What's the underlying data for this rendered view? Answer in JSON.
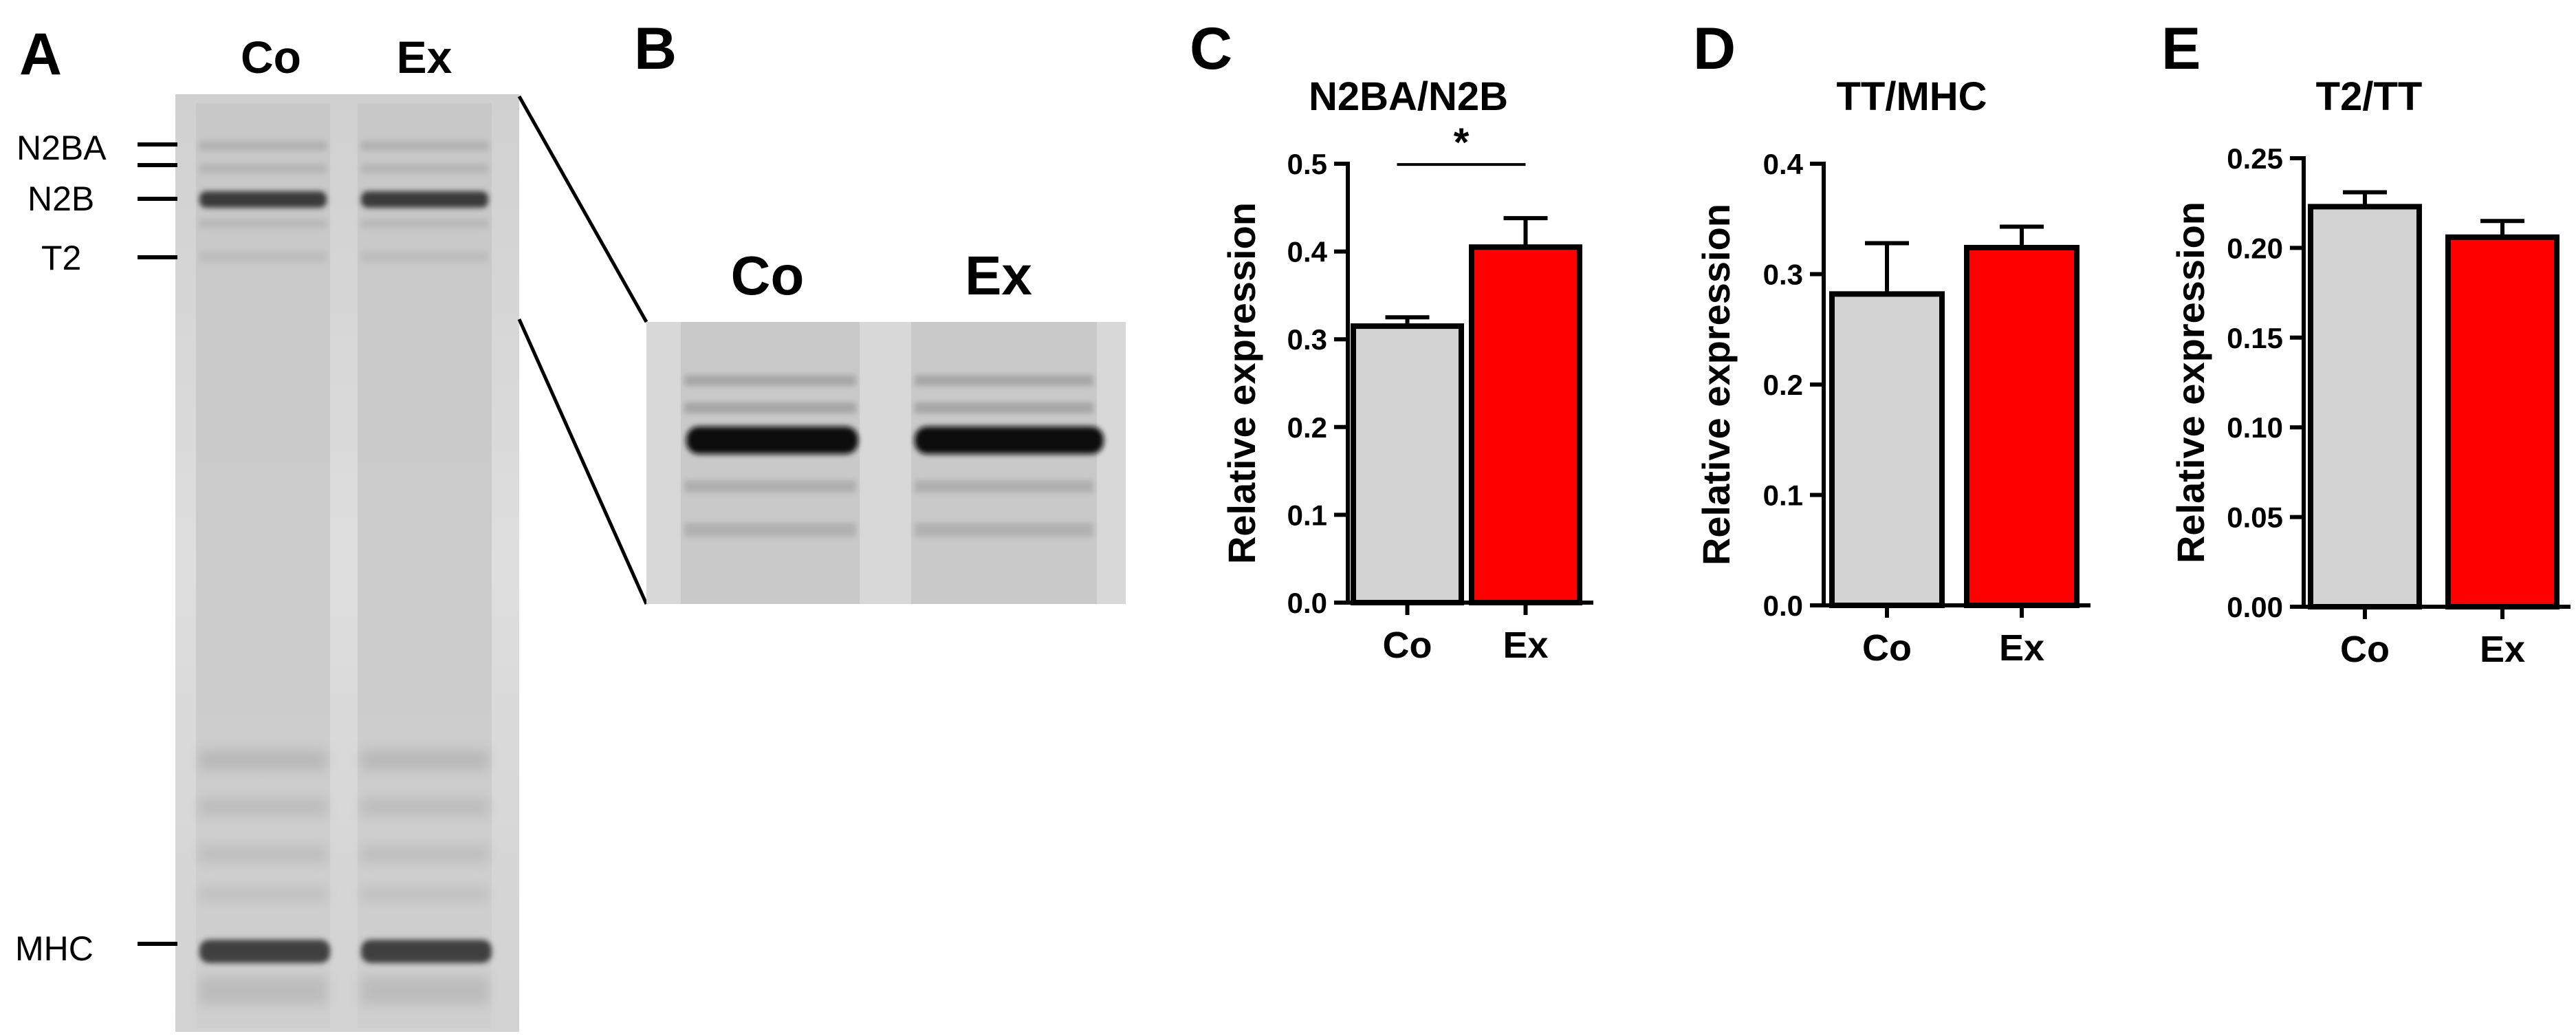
{
  "panels": {
    "A": "A",
    "B": "B",
    "C": "C",
    "D": "D",
    "E": "E"
  },
  "gel": {
    "lanes": [
      "Co",
      "Ex"
    ],
    "band_labels": [
      "N2BA",
      "N2B",
      "T2",
      "MHC"
    ]
  },
  "inset": {
    "lanes": [
      "Co",
      "Ex"
    ]
  },
  "colors": {
    "control_bar": "#d3d3d3",
    "exercise_bar": "#ff0000",
    "axis": "#000000"
  },
  "chart_data": [
    {
      "type": "bar",
      "title": "N2BA/N2B",
      "ylabel": "Relative expression",
      "xlabel": "",
      "categories": [
        "Co",
        "Ex"
      ],
      "values": [
        0.315,
        0.405
      ],
      "errors": [
        0.01,
        0.033
      ],
      "ylim": [
        0,
        0.5
      ],
      "yticks": [
        0.0,
        0.1,
        0.2,
        0.3,
        0.4,
        0.5
      ],
      "ytick_labels": [
        "0.0",
        "0.1",
        "0.2",
        "0.3",
        "0.4",
        "0.5"
      ],
      "significance": {
        "between": [
          "Co",
          "Ex"
        ],
        "label": "*"
      },
      "bar_colors": [
        "#d3d3d3",
        "#ff0000"
      ]
    },
    {
      "type": "bar",
      "title": "TT/MHC",
      "ylabel": "Relative expression",
      "xlabel": "",
      "categories": [
        "Co",
        "Ex"
      ],
      "values": [
        0.282,
        0.324
      ],
      "errors": [
        0.046,
        0.019
      ],
      "ylim": [
        0,
        0.4
      ],
      "yticks": [
        0.0,
        0.1,
        0.2,
        0.3,
        0.4
      ],
      "ytick_labels": [
        "0.0",
        "0.1",
        "0.2",
        "0.3",
        "0.4"
      ],
      "bar_colors": [
        "#d3d3d3",
        "#ff0000"
      ]
    },
    {
      "type": "bar",
      "title": "T2/TT",
      "ylabel": "Relative expression",
      "xlabel": "",
      "categories": [
        "Co",
        "Ex"
      ],
      "values": [
        0.223,
        0.206
      ],
      "errors": [
        0.008,
        0.009
      ],
      "ylim": [
        0,
        0.25
      ],
      "yticks": [
        0.0,
        0.05,
        0.1,
        0.15,
        0.2,
        0.25
      ],
      "ytick_labels": [
        "0.00",
        "0.05",
        "0.10",
        "0.15",
        "0.20",
        "0.25"
      ],
      "bar_colors": [
        "#d3d3d3",
        "#ff0000"
      ]
    }
  ]
}
